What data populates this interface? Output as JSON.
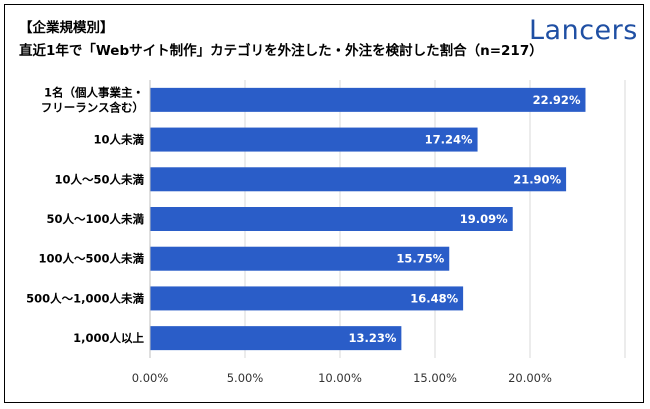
{
  "title_line1": "【企業規模別】",
  "title_line2": "直近1年で「Webサイト制作」カテゴリを外注した・外注を検討した割合（n=217）",
  "logo_text": "Lancers",
  "colors": {
    "bar": "#2a5dc8",
    "logo": "#1f4fa3",
    "grid": "#d9d9d9"
  },
  "chart_data": {
    "type": "bar",
    "orientation": "horizontal",
    "categories": [
      [
        "1名（個人事業主・",
        "フリーランス含む）"
      ],
      [
        "10人未満"
      ],
      [
        "10人～50人未満"
      ],
      [
        "50人～100人未満"
      ],
      [
        "100人～500人未満"
      ],
      [
        "500人～1,000人未満"
      ],
      [
        "1,000人以上"
      ]
    ],
    "values": [
      22.92,
      17.24,
      21.9,
      19.09,
      15.75,
      16.48,
      13.23
    ],
    "value_labels": [
      "22.92%",
      "17.24%",
      "21.90%",
      "19.09%",
      "15.75%",
      "16.48%",
      "13.23%"
    ],
    "x_ticks": [
      0,
      5,
      10,
      15,
      20
    ],
    "x_tick_labels": [
      "0.00%",
      "5.00%",
      "10.00%",
      "15.00%",
      "20.00%"
    ],
    "xlim": [
      0,
      25
    ],
    "grid": true
  }
}
